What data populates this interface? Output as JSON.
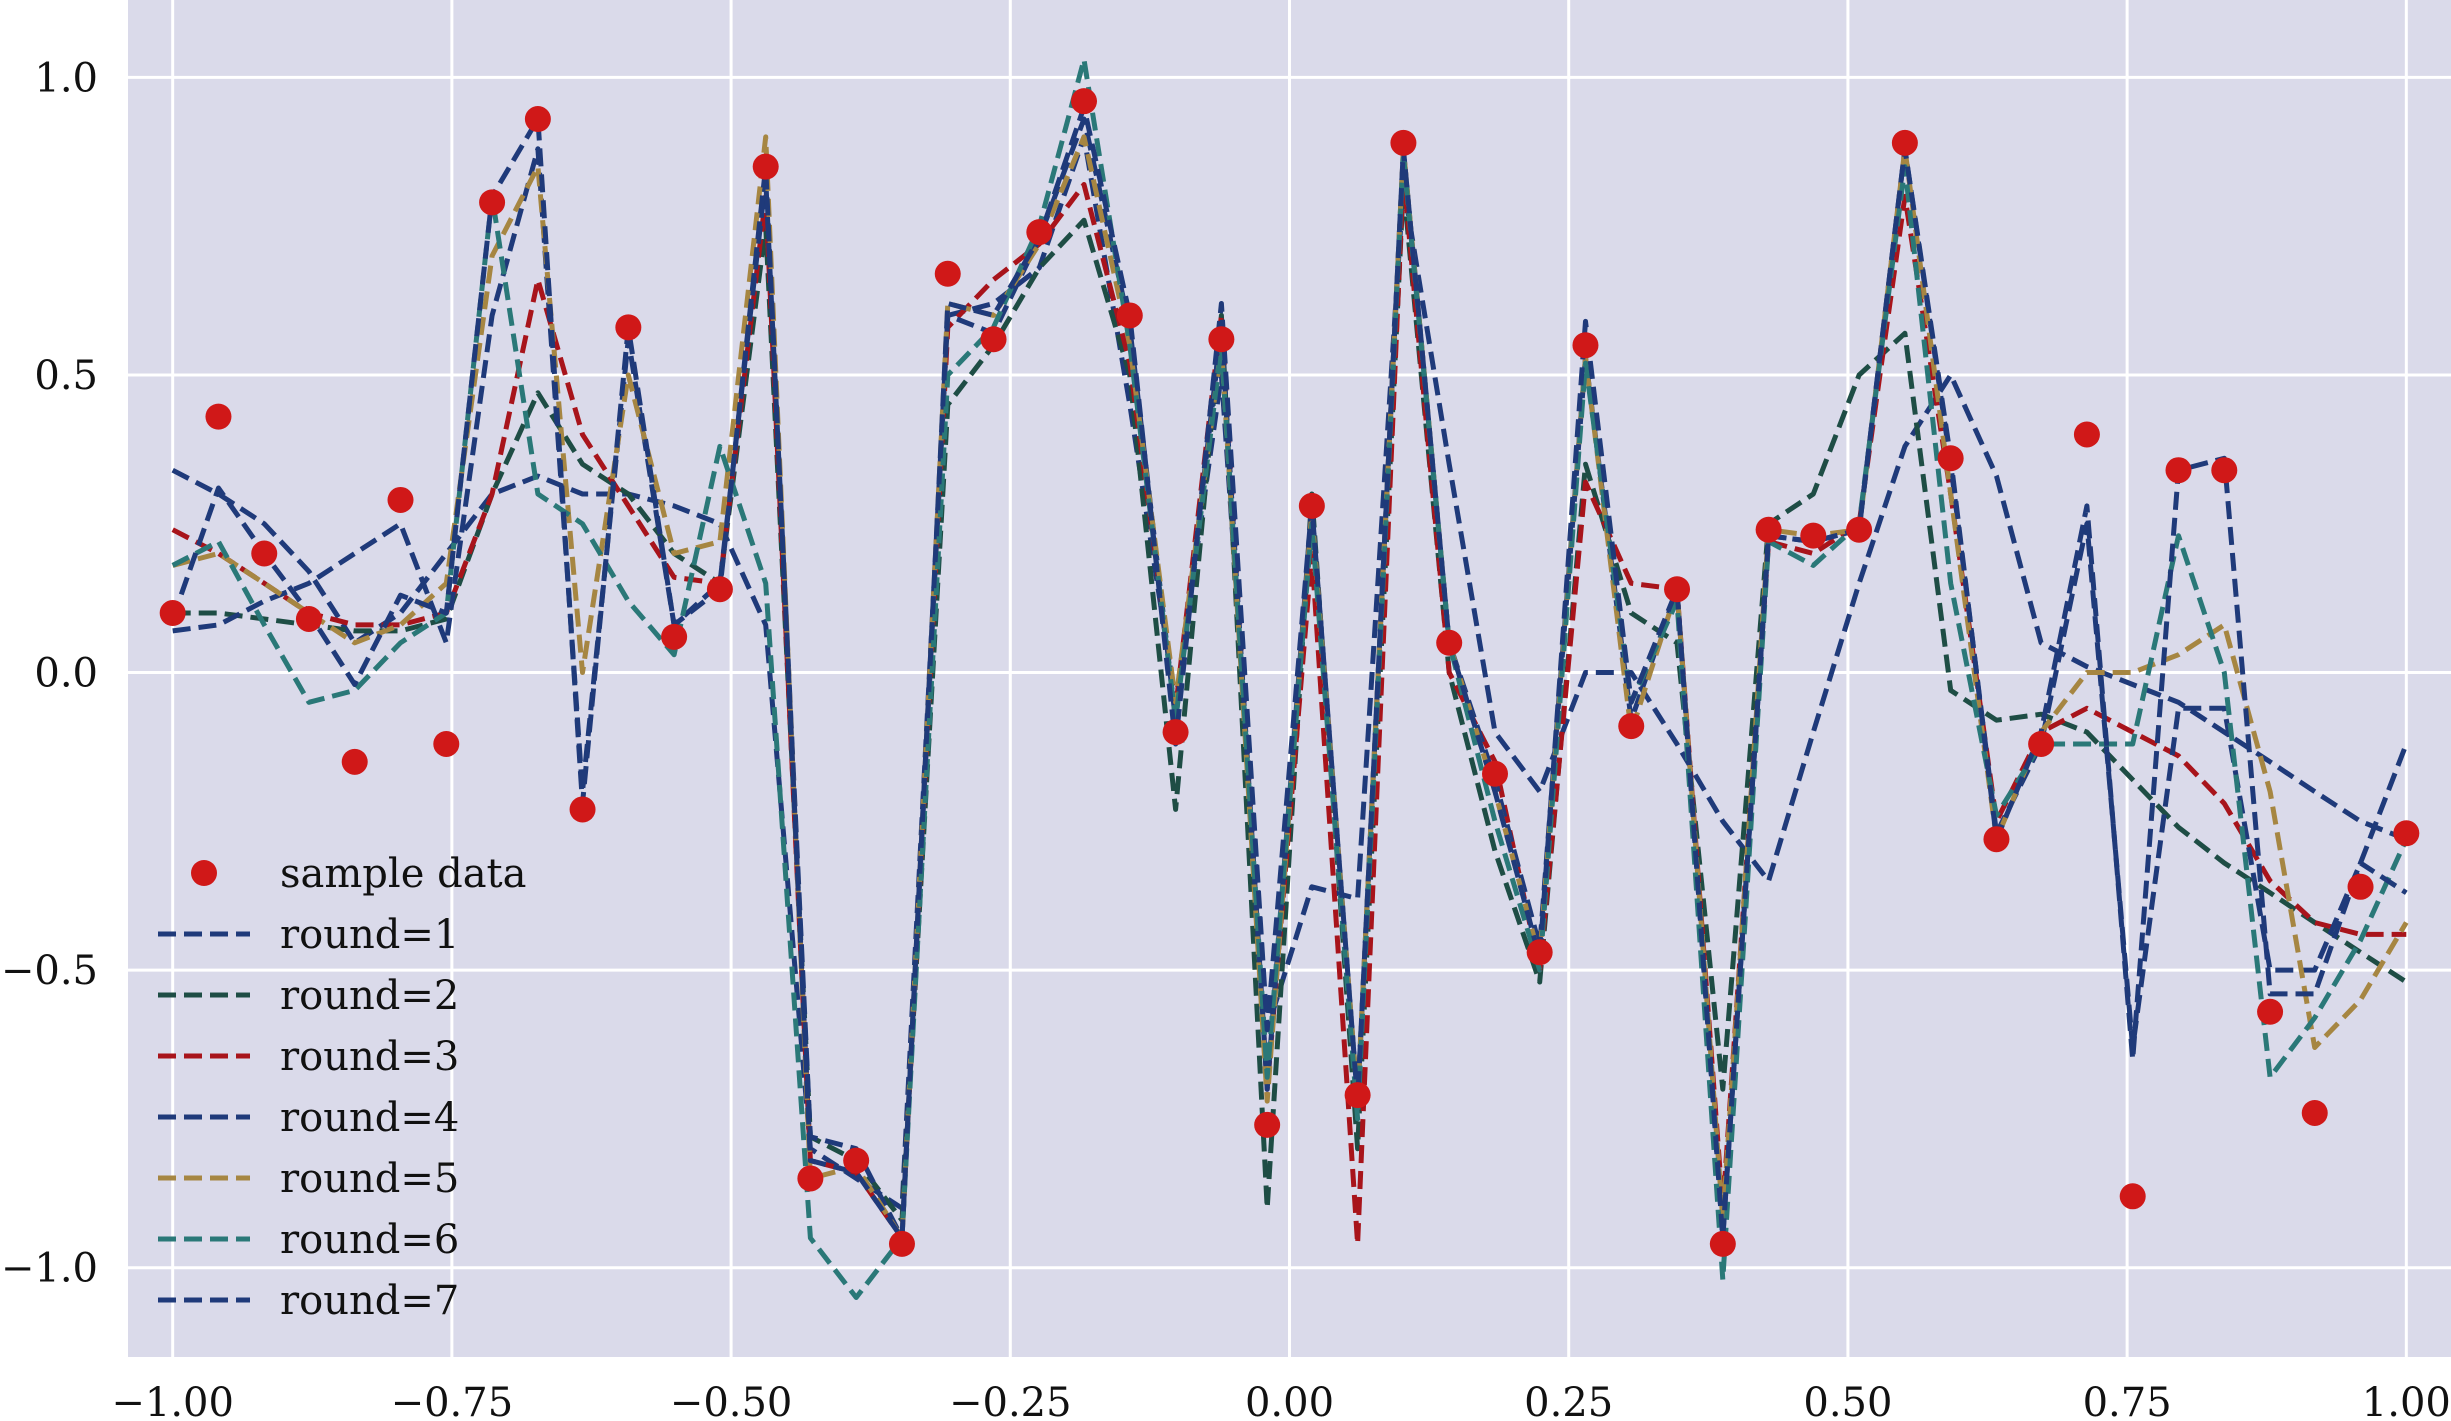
{
  "chart_data": {
    "type": "line",
    "title": "",
    "xlabel": "",
    "ylabel": "",
    "xlim": [
      -1.04,
      1.04
    ],
    "ylim": [
      -1.15,
      1.13
    ],
    "grid": true,
    "legend_placement": "lower-left",
    "x_ticks": [
      -1.0,
      -0.75,
      -0.5,
      -0.25,
      0.0,
      0.25,
      0.5,
      0.75,
      1.0
    ],
    "x_tick_labels": [
      "−1.00",
      "−0.75",
      "−0.50",
      "−0.25",
      "0.00",
      "0.25",
      "0.50",
      "0.75",
      "1.00"
    ],
    "y_ticks": [
      1.0,
      0.5,
      0.0,
      -0.5,
      -1.0
    ],
    "y_tick_labels": [
      "1.0",
      "0.5",
      "0.0",
      "−0.5",
      "−1.0"
    ],
    "colors": {
      "background": "#dadaea",
      "grid": "#ffffff",
      "sample": "#d01818"
    },
    "x": [
      -1.0,
      -0.959,
      -0.918,
      -0.878,
      -0.837,
      -0.796,
      -0.755,
      -0.714,
      -0.673,
      -0.633,
      -0.592,
      -0.551,
      -0.51,
      -0.469,
      -0.429,
      -0.388,
      -0.347,
      -0.306,
      -0.265,
      -0.224,
      -0.184,
      -0.143,
      -0.102,
      -0.061,
      -0.02,
      0.02,
      0.061,
      0.102,
      0.143,
      0.184,
      0.224,
      0.265,
      0.306,
      0.347,
      0.388,
      0.429,
      0.469,
      0.51,
      0.551,
      0.592,
      0.633,
      0.673,
      0.714,
      0.755,
      0.796,
      0.837,
      0.878,
      0.918,
      0.959,
      1.0
    ],
    "sample": {
      "name": "sample data",
      "y": [
        0.1,
        0.43,
        0.2,
        0.09,
        -0.15,
        0.29,
        -0.12,
        0.79,
        0.93,
        -0.23,
        0.58,
        0.06,
        0.14,
        0.85,
        -0.85,
        -0.82,
        -0.96,
        0.67,
        0.56,
        0.74,
        0.96,
        0.6,
        -0.1,
        0.56,
        -0.76,
        0.28,
        -0.71,
        0.89,
        0.05,
        -0.17,
        -0.47,
        0.55,
        -0.09,
        0.14,
        -0.96,
        0.24,
        0.23,
        0.24,
        0.89,
        0.36,
        -0.28,
        -0.12,
        0.4,
        -0.88,
        0.34,
        0.34,
        -0.57,
        -0.74,
        -0.36,
        -0.27
      ]
    },
    "series": [
      {
        "name": "round=1",
        "color": "#1f3a7a",
        "y": [
          0.34,
          0.3,
          0.25,
          0.17,
          0.05,
          0.1,
          0.2,
          0.3,
          0.33,
          0.3,
          0.3,
          0.28,
          0.25,
          0.08,
          -0.8,
          -0.85,
          -0.9,
          0.6,
          0.62,
          0.68,
          0.9,
          0.45,
          -0.05,
          0.5,
          -0.6,
          -0.36,
          -0.38,
          0.82,
          0.35,
          -0.1,
          -0.2,
          0.0,
          0.0,
          -0.12,
          -0.25,
          -0.35,
          -0.1,
          0.15,
          0.38,
          0.5,
          0.33,
          0.05,
          0.01,
          -0.02,
          -0.05,
          -0.1,
          -0.15,
          -0.2,
          -0.25,
          -0.28
        ]
      },
      {
        "name": "round=2",
        "color": "#1e4d45",
        "y": [
          0.1,
          0.1,
          0.09,
          0.08,
          0.07,
          0.07,
          0.09,
          0.3,
          0.47,
          0.35,
          0.3,
          0.2,
          0.15,
          0.75,
          -0.78,
          -0.82,
          -0.92,
          0.45,
          0.55,
          0.68,
          0.76,
          0.5,
          -0.23,
          0.6,
          -0.9,
          0.3,
          -0.8,
          0.82,
          0.0,
          -0.3,
          -0.52,
          0.35,
          0.1,
          0.05,
          -0.7,
          0.25,
          0.3,
          0.5,
          0.57,
          -0.03,
          -0.08,
          -0.07,
          -0.1,
          -0.18,
          -0.26,
          -0.32,
          -0.37,
          -0.42,
          -0.47,
          -0.52
        ]
      },
      {
        "name": "round=3",
        "color": "#a8141b",
        "y": [
          0.24,
          0.2,
          0.15,
          0.1,
          0.08,
          0.08,
          0.1,
          0.3,
          0.66,
          0.4,
          0.28,
          0.16,
          0.15,
          0.8,
          -0.82,
          -0.84,
          -0.95,
          0.58,
          0.66,
          0.72,
          0.82,
          0.52,
          -0.06,
          0.6,
          -0.7,
          0.2,
          -0.96,
          0.84,
          0.0,
          -0.15,
          -0.5,
          0.32,
          0.15,
          0.14,
          -0.9,
          0.22,
          0.2,
          0.25,
          0.8,
          0.3,
          -0.25,
          -0.1,
          -0.06,
          -0.1,
          -0.14,
          -0.22,
          -0.35,
          -0.42,
          -0.44,
          -0.44
        ]
      },
      {
        "name": "round=4",
        "color": "#1f3a7a",
        "y": [
          0.07,
          0.08,
          0.12,
          0.15,
          0.2,
          0.25,
          0.05,
          0.6,
          0.88,
          -0.2,
          0.56,
          0.08,
          0.15,
          0.83,
          -0.78,
          -0.8,
          -0.95,
          0.6,
          0.57,
          0.73,
          0.93,
          0.58,
          -0.08,
          0.58,
          -0.7,
          0.28,
          -0.72,
          0.88,
          0.05,
          -0.18,
          -0.46,
          0.53,
          -0.08,
          0.14,
          -0.95,
          0.23,
          0.22,
          0.24,
          0.88,
          0.35,
          -0.27,
          -0.12,
          0.25,
          -0.63,
          -0.06,
          -0.06,
          -0.5,
          -0.5,
          -0.32,
          -0.12
        ]
      },
      {
        "name": "round=5",
        "color": "#a68642",
        "y": [
          0.18,
          0.2,
          0.15,
          0.1,
          0.05,
          0.08,
          0.15,
          0.7,
          0.85,
          0.0,
          0.5,
          0.2,
          0.22,
          0.9,
          -0.85,
          -0.83,
          -0.95,
          0.62,
          0.6,
          0.72,
          0.9,
          0.55,
          -0.05,
          0.55,
          -0.72,
          0.27,
          -0.72,
          0.88,
          0.05,
          -0.2,
          -0.48,
          0.53,
          -0.1,
          0.14,
          -0.92,
          0.24,
          0.23,
          0.24,
          0.88,
          0.3,
          -0.28,
          -0.1,
          0.0,
          0.0,
          0.03,
          0.08,
          -0.2,
          -0.63,
          -0.55,
          -0.42
        ]
      },
      {
        "name": "round=6",
        "color": "#2a7878",
        "y": [
          0.18,
          0.22,
          0.08,
          -0.05,
          -0.03,
          0.05,
          0.1,
          0.8,
          0.3,
          0.25,
          0.12,
          0.03,
          0.38,
          0.15,
          -0.95,
          -1.05,
          -0.95,
          0.5,
          0.58,
          0.75,
          1.03,
          0.55,
          -0.08,
          0.55,
          -0.68,
          0.25,
          -0.75,
          0.87,
          0.05,
          -0.25,
          -0.5,
          0.52,
          -0.05,
          0.12,
          -1.02,
          0.22,
          0.18,
          0.25,
          0.85,
          0.15,
          -0.24,
          -0.12,
          -0.12,
          -0.12,
          0.23,
          0.0,
          -0.68,
          -0.58,
          -0.45,
          -0.28
        ]
      },
      {
        "name": "round=7",
        "color": "#1f3a7a",
        "y": [
          0.09,
          0.31,
          0.2,
          0.1,
          -0.02,
          0.13,
          0.1,
          0.8,
          0.93,
          -0.22,
          0.58,
          0.08,
          0.14,
          0.85,
          -0.82,
          -0.84,
          -0.95,
          0.62,
          0.6,
          0.73,
          0.95,
          0.6,
          -0.12,
          0.62,
          -0.6,
          0.28,
          -0.72,
          0.88,
          0.05,
          -0.2,
          -0.48,
          0.59,
          -0.05,
          0.14,
          -0.95,
          0.23,
          0.22,
          0.24,
          0.88,
          0.36,
          -0.28,
          -0.1,
          0.28,
          -0.65,
          0.34,
          0.36,
          -0.54,
          -0.54,
          -0.32,
          -0.37
        ]
      }
    ]
  }
}
